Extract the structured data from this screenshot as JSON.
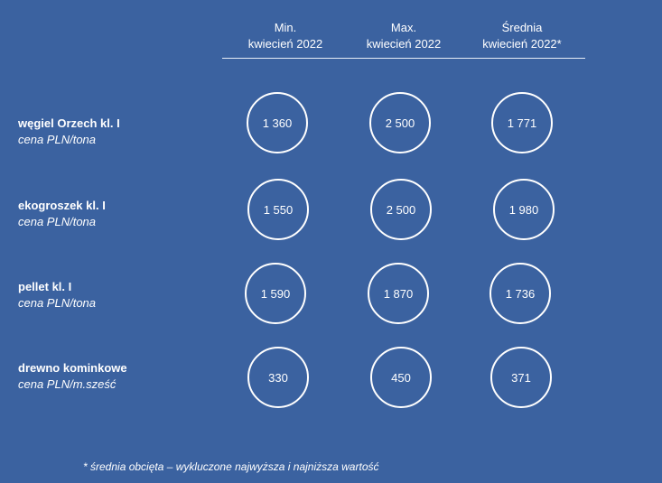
{
  "columns": [
    {
      "line1": "Min.",
      "line2": "kwiecień 2022"
    },
    {
      "line1": "Max.",
      "line2": "kwiecień 2022"
    },
    {
      "line1": "Średnia",
      "line2": "kwiecień 2022*"
    }
  ],
  "rows": [
    {
      "name": "węgiel Orzech kl. I",
      "unit": "cena PLN/tona",
      "values": [
        "1 360",
        "2 500",
        "1 771"
      ]
    },
    {
      "name": "ekogroszek kl. I",
      "unit": "cena PLN/tona",
      "values": [
        "1 550",
        "2 500",
        "1 980"
      ]
    },
    {
      "name": "pellet kl. I",
      "unit": "cena PLN/tona",
      "values": [
        "1 590",
        "1 870",
        "1 736"
      ]
    },
    {
      "name": "drewno kominkowe",
      "unit": "cena PLN/m.sześć",
      "values": [
        "330",
        "450",
        "371"
      ]
    }
  ],
  "footnote": "* średnia obcięta – wykluczone najwyższa i najniższa wartość",
  "colors": {
    "background": "#3b62a0",
    "foreground": "#ffffff"
  }
}
